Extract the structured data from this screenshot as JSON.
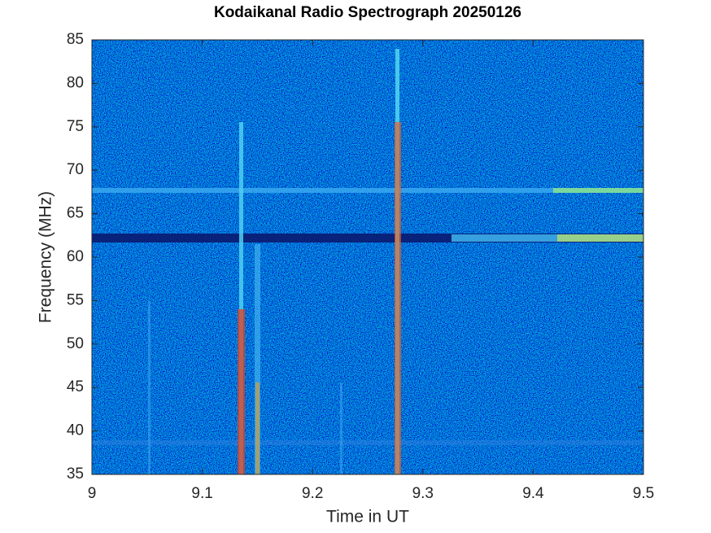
{
  "chart_data": {
    "type": "spectrogram",
    "title": "Kodaikanal Radio Spectrograph  20250126",
    "x_label": "Time in UT",
    "y_label": "Frequency (MHz)",
    "xlim": [
      9,
      9.5
    ],
    "xticks": [
      9,
      9.1,
      9.2,
      9.3,
      9.4,
      9.5
    ],
    "ylim": [
      35,
      85
    ],
    "yticks": [
      35,
      40,
      45,
      50,
      55,
      60,
      65,
      70,
      75,
      80,
      85
    ]
  }
}
